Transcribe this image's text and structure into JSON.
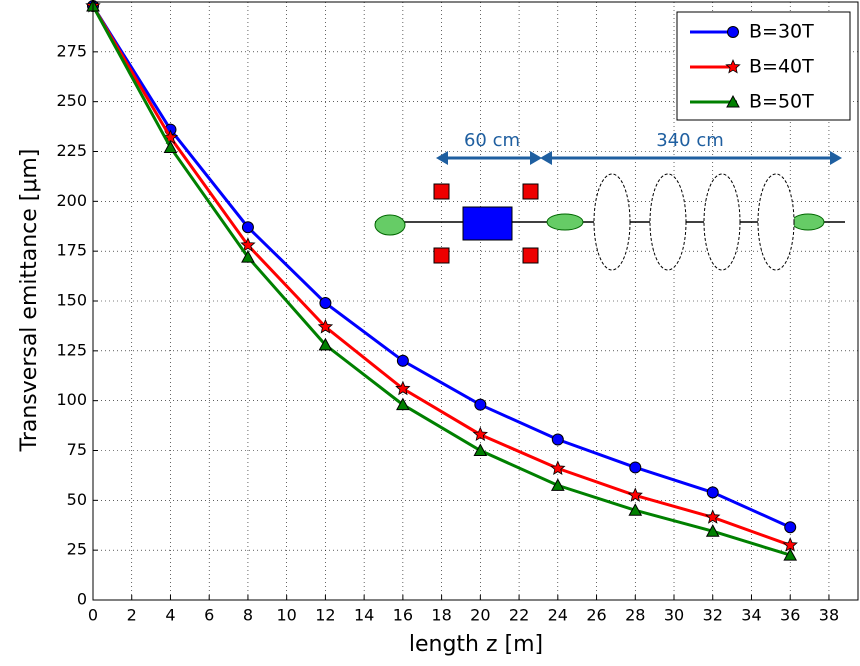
{
  "chart_data": {
    "type": "line",
    "xlabel": "length z [m]",
    "ylabel": "Transversal emittance [μm]",
    "x": [
      0,
      4,
      8,
      12,
      16,
      20,
      24,
      28,
      32,
      36
    ],
    "series": [
      {
        "name": "B=30T",
        "color": "#0000ff",
        "marker": "o",
        "values": [
          298,
          236,
          187,
          149,
          120,
          98,
          80.5,
          66.5,
          54,
          36.5
        ]
      },
      {
        "name": "B=40T",
        "color": "#ff0000",
        "marker": "*",
        "values": [
          298,
          232,
          178,
          137,
          106,
          83,
          66,
          52.5,
          41.5,
          27.5
        ]
      },
      {
        "name": "B=50T",
        "color": "#008000",
        "marker": "^",
        "values": [
          298,
          227,
          172,
          128,
          98,
          75,
          57.5,
          45,
          34.5,
          22.5
        ]
      }
    ],
    "xlim": [
      0,
      39.5
    ],
    "ylim": [
      0,
      300
    ],
    "xticks": [
      0,
      2,
      4,
      6,
      8,
      10,
      12,
      14,
      16,
      18,
      20,
      22,
      24,
      26,
      28,
      30,
      32,
      34,
      36,
      38
    ],
    "yticks": [
      0,
      25,
      50,
      75,
      100,
      125,
      150,
      175,
      200,
      225,
      250,
      275
    ],
    "grid": true,
    "legend": "upper right",
    "annotations": [
      "60 cm",
      "340 cm"
    ]
  }
}
